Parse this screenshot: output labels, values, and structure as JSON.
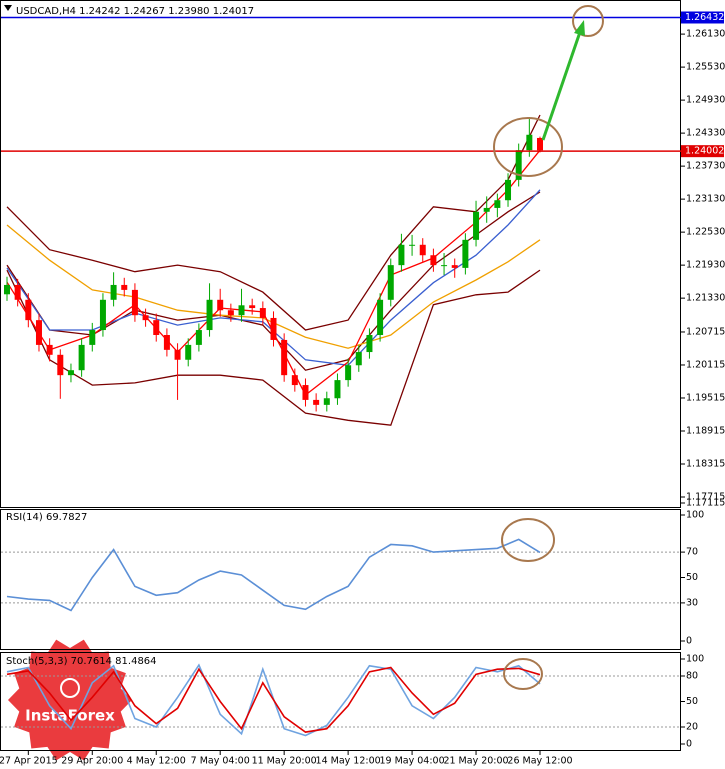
{
  "chart_data": [
    {
      "type": "candlestick",
      "title": "USDCAD,H4  1.24242 1.24267 1.23980 1.24017",
      "categories": [
        null,
        null,
        "27 Apr 2015",
        null,
        null,
        null,
        null,
        null,
        "29 Apr 20:00",
        null,
        null,
        null,
        null,
        null,
        "4 May 12:00",
        null,
        null,
        null,
        null,
        null,
        "7 May 04:00",
        null,
        null,
        null,
        null,
        null,
        "11 May 20:00",
        null,
        null,
        null,
        null,
        null,
        "14 May 12:00",
        null,
        null,
        null,
        null,
        null,
        "19 May 04:00",
        null,
        null,
        null,
        null,
        null,
        "21 May 20:00",
        null,
        null,
        null,
        null,
        null,
        "26 May 12:00"
      ],
      "open": [
        1.214,
        1.2157,
        1.213,
        1.2093,
        1.2048,
        1.203,
        1.1993,
        1.2002,
        1.2048,
        1.2075,
        1.213,
        1.2157,
        1.2148,
        1.2102,
        1.2093,
        1.2066,
        1.2039,
        1.2021,
        1.2048,
        1.2075,
        1.213,
        1.2111,
        1.2102,
        1.212,
        1.2115,
        1.2097,
        1.2057,
        1.1993,
        1.1975,
        1.1948,
        1.1939,
        1.1951,
        1.1984,
        1.2011,
        1.2035,
        1.2066,
        1.213,
        1.2193,
        1.223,
        1.223,
        1.2211,
        1.2193,
        1.2193,
        1.2188,
        1.2239,
        1.229,
        1.2297,
        1.2311,
        1.2348,
        1.2402,
        1.24242
      ],
      "high": [
        1.2172,
        1.2168,
        1.2142,
        1.2105,
        1.206,
        1.204,
        1.2014,
        1.206,
        1.2088,
        1.2142,
        1.218,
        1.217,
        1.216,
        1.2114,
        1.2105,
        1.2078,
        1.2051,
        1.206,
        1.2087,
        1.216,
        1.215,
        1.2123,
        1.215,
        1.2132,
        1.2127,
        1.2109,
        1.2069,
        1.2005,
        1.1987,
        1.196,
        1.1963,
        1.1996,
        1.2023,
        1.2047,
        1.2078,
        1.2142,
        1.2205,
        1.225,
        1.2248,
        1.2242,
        1.2223,
        1.2215,
        1.2205,
        1.2251,
        1.231,
        1.2318,
        1.2323,
        1.236,
        1.2414,
        1.2462,
        1.24267
      ],
      "low": [
        1.2128,
        1.2118,
        1.208,
        1.2036,
        1.2018,
        1.195,
        1.198,
        1.199,
        1.2036,
        1.2063,
        1.2118,
        1.2136,
        1.209,
        1.2081,
        1.2054,
        1.2027,
        1.1948,
        1.2009,
        1.2036,
        1.2063,
        1.2099,
        1.209,
        1.209,
        1.2103,
        1.2085,
        1.2045,
        1.1981,
        1.1963,
        1.1936,
        1.1927,
        1.1927,
        1.1939,
        1.1972,
        1.1999,
        1.2023,
        1.2054,
        1.2118,
        1.2181,
        1.221,
        1.2199,
        1.2181,
        1.2175,
        1.217,
        1.2176,
        1.2227,
        1.227,
        1.228,
        1.2299,
        1.2336,
        1.239,
        1.2398
      ],
      "close": [
        1.2157,
        1.213,
        1.2093,
        1.2048,
        1.203,
        1.1993,
        1.2002,
        1.2048,
        1.2075,
        1.213,
        1.2157,
        1.2148,
        1.2102,
        1.2093,
        1.2066,
        1.2039,
        1.2021,
        1.2048,
        1.2075,
        1.213,
        1.2111,
        1.2102,
        1.212,
        1.2115,
        1.2097,
        1.2057,
        1.1993,
        1.1975,
        1.1948,
        1.1939,
        1.1951,
        1.1984,
        1.2011,
        1.2035,
        1.2066,
        1.213,
        1.2193,
        1.223,
        1.223,
        1.2211,
        1.2193,
        1.2193,
        1.2188,
        1.2239,
        1.229,
        1.2297,
        1.2311,
        1.2348,
        1.2402,
        1.243,
        1.24017
      ],
      "up_color": "#00a800",
      "down_color": "#ff0000",
      "xlim": [
        0,
        50
      ],
      "ylim": [
        1.17515,
        1.2675
      ],
      "yticks": [
        {
          "value": 1.2613,
          "label": "1.26130"
        },
        {
          "value": 1.2553,
          "label": "1.25530"
        },
        {
          "value": 1.2493,
          "label": "1.24930"
        },
        {
          "value": 1.2433,
          "label": "1.24330"
        },
        {
          "value": 1.2373,
          "label": "1.23730"
        },
        {
          "value": 1.2313,
          "label": "1.23130"
        },
        {
          "value": 1.2253,
          "label": "1.22530"
        },
        {
          "value": 1.2193,
          "label": "1.21930"
        },
        {
          "value": 1.2133,
          "label": "1.21330"
        },
        1.20715,
        1.20115,
        1.19515,
        1.18915,
        1.18315,
        1.17715,
        1.17115
      ],
      "overlays": [
        {
          "color": "#7a0000",
          "x": [
            0,
            4,
            8,
            12,
            16,
            20,
            24,
            28,
            32,
            36,
            40,
            44,
            47,
            50
          ],
          "values": [
            1.2299,
            1.2221,
            1.2202,
            1.2181,
            1.2193,
            1.2181,
            1.2144,
            1.2075,
            1.2093,
            1.2211,
            1.2299,
            1.229,
            1.2348,
            1.2466
          ]
        },
        {
          "color": "#7a0000",
          "x": [
            0,
            4,
            8,
            12,
            16,
            20,
            24,
            28,
            32,
            36,
            40,
            44,
            47,
            50
          ],
          "values": [
            1.2184,
            1.2021,
            1.1975,
            1.1979,
            1.1993,
            1.1993,
            1.1984,
            1.1924,
            1.1911,
            1.1902,
            1.2121,
            1.2139,
            1.2144,
            1.2184
          ]
        },
        {
          "color": "#7a0000",
          "x": [
            0,
            4,
            8,
            12,
            16,
            20,
            24,
            28,
            32,
            36,
            40,
            44,
            47,
            50
          ],
          "values": [
            1.2193,
            1.2075,
            1.2066,
            1.2111,
            1.2093,
            1.2102,
            1.2084,
            1.2002,
            1.2021,
            1.2111,
            1.2193,
            1.2248,
            1.229,
            1.2326
          ]
        },
        {
          "color": "#f0a000",
          "x": [
            0,
            4,
            8,
            12,
            16,
            20,
            24,
            28,
            32,
            36,
            40,
            44,
            47,
            50
          ],
          "values": [
            1.2266,
            1.2202,
            1.2148,
            1.2135,
            1.2111,
            1.2102,
            1.2097,
            1.2062,
            1.2042,
            1.2066,
            1.2126,
            1.2166,
            1.2199,
            1.2239
          ]
        },
        {
          "color": "#3a5fd0",
          "x": [
            0,
            4,
            8,
            12,
            16,
            20,
            24,
            28,
            32,
            36,
            40,
            44,
            47,
            50
          ],
          "values": [
            1.2188,
            1.2075,
            1.2075,
            1.2106,
            1.2084,
            1.2097,
            1.209,
            1.2021,
            1.2011,
            1.2093,
            1.2161,
            1.2211,
            1.2266,
            1.233
          ]
        },
        {
          "color": "#ff0000",
          "x": [
            0,
            4,
            8,
            12,
            16,
            20,
            24,
            28,
            32,
            36,
            40,
            44,
            47,
            50
          ],
          "values": [
            1.2162,
            1.2039,
            1.2066,
            1.2121,
            1.2035,
            1.2115,
            1.2108,
            1.1957,
            1.2017,
            1.2175,
            1.2206,
            1.2271,
            1.233,
            1.2402
          ]
        }
      ],
      "levels": [
        {
          "value": 1.26432,
          "color": "#0000e0"
        },
        {
          "value": 1.24002,
          "color": "#e00000"
        }
      ]
    },
    {
      "type": "line",
      "title": "RSI(14) 69.7827",
      "x": [
        0,
        2,
        4,
        6,
        8,
        10,
        12,
        14,
        16,
        18,
        20,
        22,
        24,
        26,
        28,
        30,
        32,
        34,
        36,
        38,
        40,
        42,
        44,
        46,
        48,
        50
      ],
      "series": [
        {
          "color": "#5b8fd6",
          "values": [
            35,
            33,
            32,
            24,
            50,
            72,
            43,
            36,
            38,
            48,
            55,
            52,
            40,
            28,
            25,
            35,
            43,
            66,
            76,
            75,
            70,
            71,
            72,
            73,
            80,
            69.7827
          ]
        }
      ],
      "xlim": [
        0,
        50
      ],
      "ylim": [
        0,
        100
      ],
      "yticks": [
        0,
        30,
        50,
        70,
        100
      ],
      "levels": [
        30,
        70
      ]
    },
    {
      "type": "line",
      "title": "Stoch(5,3,3) 70.7614 81.4864",
      "x": [
        0,
        2,
        4,
        6,
        8,
        10,
        12,
        14,
        16,
        18,
        20,
        22,
        24,
        26,
        28,
        30,
        32,
        34,
        36,
        38,
        40,
        42,
        44,
        46,
        48,
        50
      ],
      "series": [
        {
          "color": "#6fa3e0",
          "values": [
            85,
            90,
            45,
            18,
            72,
            92,
            30,
            20,
            55,
            93,
            35,
            12,
            88,
            18,
            10,
            22,
            55,
            92,
            88,
            45,
            30,
            55,
            90,
            85,
            92,
            70.7614
          ]
        },
        {
          "color": "#e00000",
          "values": [
            82,
            86,
            60,
            28,
            55,
            85,
            45,
            24,
            42,
            88,
            50,
            18,
            72,
            32,
            14,
            18,
            45,
            85,
            90,
            60,
            35,
            48,
            82,
            88,
            89,
            81.4864
          ]
        }
      ],
      "xlim": [
        0,
        50
      ],
      "ylim": [
        0,
        100
      ],
      "yticks": [
        0,
        20,
        50,
        80,
        100
      ],
      "levels": [
        20,
        80
      ]
    }
  ],
  "logo": {
    "text": "InstaForex"
  }
}
